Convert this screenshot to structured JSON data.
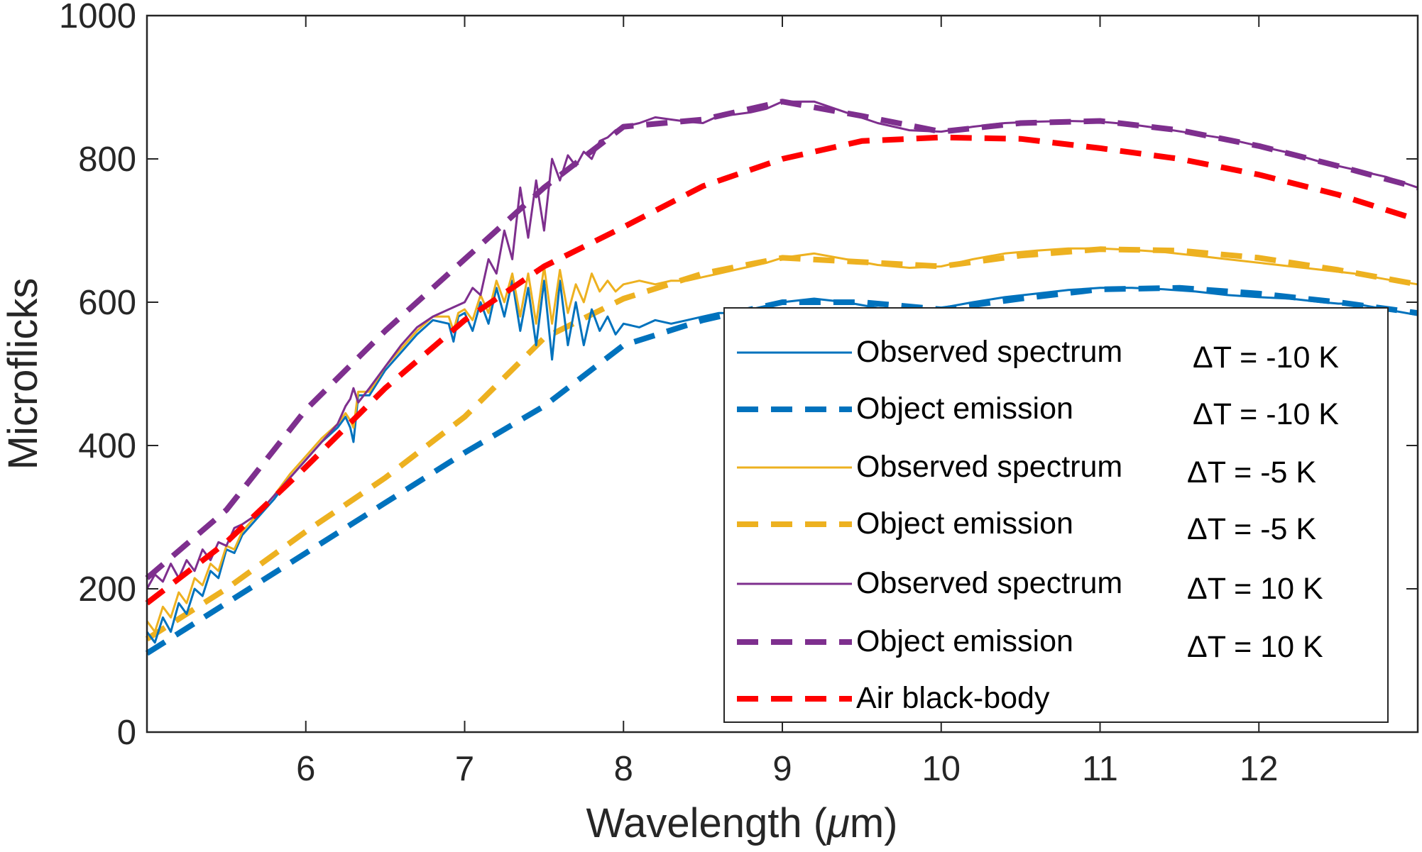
{
  "chart_data": {
    "type": "line",
    "title": "",
    "xlabel": "Wavelength (μm)",
    "ylabel": "Microflicks",
    "xlim": [
      5.0,
      13.0
    ],
    "ylim": [
      0,
      1000
    ],
    "xticks": [
      6,
      7,
      8,
      9,
      10,
      11,
      12
    ],
    "yticks": [
      0,
      200,
      400,
      600,
      800,
      1000
    ],
    "grid": false,
    "legend_position": "bottom-right",
    "series": [
      {
        "name": "Observed spectrum",
        "delta": "ΔT = -10 K",
        "style": "solid",
        "color": "#0072BD",
        "x": [
          5.0,
          5.05,
          5.1,
          5.15,
          5.2,
          5.25,
          5.3,
          5.35,
          5.4,
          5.45,
          5.5,
          5.55,
          5.6,
          5.7,
          5.8,
          5.9,
          6.0,
          6.1,
          6.2,
          6.25,
          6.28,
          6.3,
          6.33,
          6.4,
          6.5,
          6.6,
          6.7,
          6.8,
          6.9,
          6.93,
          6.96,
          7.0,
          7.05,
          7.1,
          7.15,
          7.2,
          7.25,
          7.3,
          7.35,
          7.4,
          7.45,
          7.5,
          7.55,
          7.6,
          7.65,
          7.7,
          7.75,
          7.8,
          7.85,
          7.9,
          7.95,
          8.0,
          8.1,
          8.2,
          8.3,
          8.4,
          8.5,
          8.6,
          8.7,
          8.8,
          8.9,
          9.0,
          9.2,
          9.4,
          9.6,
          9.8,
          10.0,
          10.2,
          10.4,
          10.6,
          10.8,
          11.0,
          11.2,
          11.4,
          11.6,
          11.8,
          12.0,
          12.2,
          12.4,
          12.5,
          12.6,
          12.8,
          13.0
        ],
        "y": [
          140,
          125,
          160,
          140,
          180,
          165,
          200,
          190,
          225,
          215,
          255,
          250,
          275,
          300,
          325,
          355,
          380,
          405,
          425,
          440,
          425,
          405,
          470,
          470,
          505,
          530,
          555,
          575,
          570,
          545,
          580,
          585,
          560,
          600,
          570,
          620,
          580,
          630,
          560,
          620,
          540,
          630,
          520,
          630,
          540,
          600,
          540,
          590,
          560,
          580,
          555,
          570,
          565,
          575,
          570,
          575,
          580,
          585,
          585,
          590,
          595,
          600,
          605,
          600,
          592,
          590,
          592,
          600,
          607,
          612,
          617,
          620,
          620,
          618,
          615,
          610,
          607,
          605,
          600,
          598,
          598,
          590,
          582
        ]
      },
      {
        "name": "Object emission",
        "delta": "ΔT = -10 K",
        "style": "dashed",
        "color": "#0072BD",
        "x": [
          5.0,
          5.5,
          6.0,
          6.5,
          7.0,
          7.5,
          8.0,
          8.5,
          9.0,
          9.5,
          10.0,
          10.5,
          11.0,
          11.5,
          12.0,
          12.5,
          13.0
        ],
        "y": [
          110,
          180,
          250,
          320,
          390,
          455,
          540,
          575,
          600,
          600,
          590,
          605,
          618,
          620,
          612,
          600,
          585
        ]
      },
      {
        "name": "Observed spectrum",
        "delta": "ΔT = -5 K",
        "style": "solid",
        "color": "#EDB120",
        "x": [
          5.0,
          5.05,
          5.1,
          5.15,
          5.2,
          5.25,
          5.3,
          5.35,
          5.4,
          5.45,
          5.5,
          5.55,
          5.6,
          5.7,
          5.8,
          5.9,
          6.0,
          6.1,
          6.2,
          6.25,
          6.28,
          6.3,
          6.33,
          6.4,
          6.5,
          6.6,
          6.7,
          6.8,
          6.9,
          6.93,
          6.96,
          7.0,
          7.05,
          7.1,
          7.15,
          7.2,
          7.25,
          7.3,
          7.35,
          7.4,
          7.45,
          7.5,
          7.55,
          7.6,
          7.65,
          7.7,
          7.75,
          7.8,
          7.85,
          7.9,
          7.95,
          8.0,
          8.1,
          8.2,
          8.3,
          8.4,
          8.5,
          8.6,
          8.7,
          8.8,
          8.9,
          9.0,
          9.2,
          9.4,
          9.6,
          9.8,
          10.0,
          10.2,
          10.4,
          10.6,
          10.8,
          11.0,
          11.2,
          11.4,
          11.6,
          11.8,
          12.0,
          12.2,
          12.4,
          12.6,
          12.8,
          13.0
        ],
        "y": [
          155,
          140,
          175,
          160,
          195,
          180,
          215,
          205,
          235,
          225,
          260,
          255,
          280,
          305,
          330,
          360,
          385,
          410,
          430,
          445,
          435,
          425,
          475,
          475,
          510,
          535,
          560,
          580,
          580,
          560,
          585,
          590,
          575,
          610,
          585,
          630,
          600,
          640,
          580,
          640,
          570,
          650,
          570,
          645,
          585,
          625,
          600,
          640,
          615,
          630,
          615,
          625,
          630,
          625,
          630,
          630,
          635,
          640,
          645,
          650,
          655,
          662,
          668,
          660,
          652,
          648,
          650,
          660,
          668,
          672,
          675,
          675,
          673,
          670,
          665,
          660,
          655,
          650,
          645,
          640,
          632,
          625
        ]
      },
      {
        "name": "Object emission",
        "delta": "ΔT = -5 K",
        "style": "dashed",
        "color": "#EDB120",
        "x": [
          5.0,
          5.5,
          6.0,
          6.5,
          7.0,
          7.5,
          8.0,
          8.5,
          9.0,
          9.5,
          10.0,
          10.5,
          11.0,
          11.5,
          12.0,
          12.5,
          13.0
        ],
        "y": [
          130,
          200,
          280,
          355,
          440,
          550,
          605,
          640,
          662,
          656,
          650,
          665,
          674,
          672,
          662,
          645,
          625
        ]
      },
      {
        "name": "Observed spectrum",
        "delta": "ΔT = 10 K",
        "style": "solid",
        "color": "#7E2F8E",
        "x": [
          5.0,
          5.05,
          5.1,
          5.15,
          5.2,
          5.25,
          5.3,
          5.35,
          5.4,
          5.45,
          5.5,
          5.55,
          5.6,
          5.7,
          5.8,
          5.9,
          6.0,
          6.1,
          6.2,
          6.25,
          6.28,
          6.3,
          6.33,
          6.4,
          6.5,
          6.6,
          6.7,
          6.8,
          6.9,
          7.0,
          7.05,
          7.1,
          7.15,
          7.2,
          7.25,
          7.3,
          7.35,
          7.4,
          7.45,
          7.5,
          7.55,
          7.6,
          7.65,
          7.7,
          7.75,
          7.8,
          7.85,
          7.9,
          7.95,
          8.0,
          8.1,
          8.2,
          8.3,
          8.4,
          8.5,
          8.6,
          8.7,
          8.8,
          8.9,
          9.0,
          9.2,
          9.4,
          9.6,
          9.8,
          10.0,
          10.2,
          10.4,
          10.6,
          10.8,
          11.0,
          11.2,
          11.4,
          11.6,
          11.8,
          12.0,
          12.2,
          12.4,
          12.6,
          12.8,
          13.0
        ],
        "y": [
          200,
          220,
          210,
          235,
          215,
          240,
          225,
          255,
          240,
          265,
          260,
          285,
          290,
          305,
          330,
          355,
          380,
          405,
          430,
          455,
          465,
          480,
          460,
          480,
          510,
          540,
          565,
          580,
          590,
          600,
          620,
          610,
          660,
          640,
          700,
          660,
          760,
          690,
          770,
          700,
          800,
          770,
          805,
          790,
          810,
          800,
          825,
          830,
          840,
          845,
          850,
          858,
          855,
          852,
          850,
          860,
          862,
          865,
          870,
          880,
          880,
          865,
          850,
          840,
          838,
          845,
          850,
          852,
          853,
          852,
          848,
          842,
          835,
          828,
          818,
          808,
          795,
          785,
          775,
          760
        ]
      },
      {
        "name": "Object emission",
        "delta": "ΔT = 10 K",
        "style": "dashed",
        "color": "#7E2F8E",
        "x": [
          5.0,
          5.5,
          6.0,
          6.5,
          7.0,
          7.5,
          8.0,
          8.5,
          9.0,
          9.5,
          10.0,
          10.5,
          11.0,
          11.5,
          12.0,
          12.5,
          13.0
        ],
        "y": [
          215,
          310,
          450,
          560,
          660,
          760,
          845,
          855,
          880,
          860,
          838,
          850,
          853,
          840,
          818,
          790,
          760
        ]
      },
      {
        "name": "Air black-body",
        "delta": "",
        "style": "dashed",
        "color": "#FF0000",
        "x": [
          5.0,
          5.5,
          6.0,
          6.5,
          7.0,
          7.5,
          8.0,
          8.5,
          9.0,
          9.5,
          10.0,
          10.5,
          11.0,
          11.5,
          12.0,
          12.5,
          13.0
        ],
        "y": [
          180,
          265,
          370,
          480,
          575,
          650,
          705,
          762,
          800,
          825,
          830,
          828,
          815,
          800,
          778,
          750,
          715
        ]
      }
    ]
  }
}
